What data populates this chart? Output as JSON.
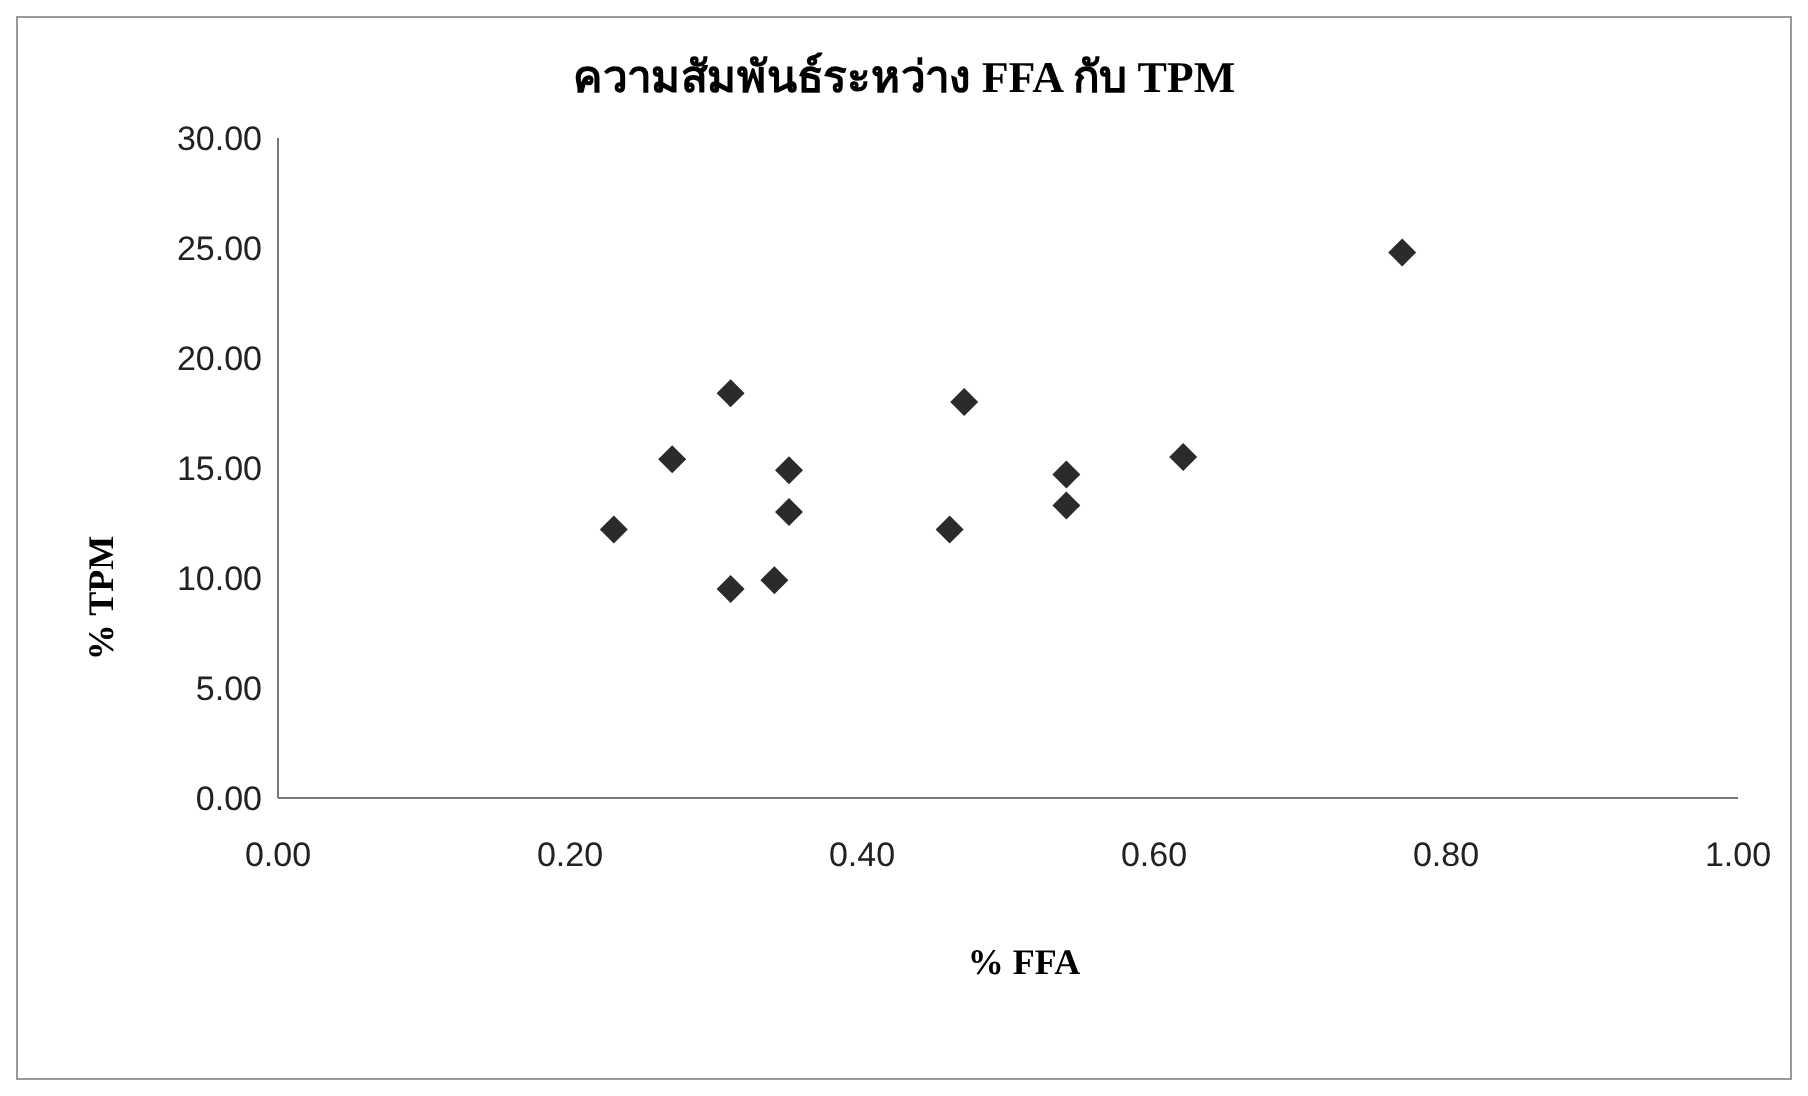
{
  "chart_data": {
    "type": "scatter",
    "title": "ความสัมพันธ์ระหว่าง FFA กับ TPM",
    "xlabel": "% FFA",
    "ylabel": "% TPM",
    "x": [
      0.23,
      0.27,
      0.31,
      0.31,
      0.34,
      0.35,
      0.35,
      0.46,
      0.47,
      0.54,
      0.54,
      0.62,
      0.77
    ],
    "series": [
      {
        "color": "#2b2b2b",
        "values": [
          12.2,
          15.4,
          18.4,
          9.5,
          9.9,
          14.9,
          13.0,
          12.2,
          18.0,
          14.7,
          13.3,
          15.5,
          24.8
        ]
      }
    ],
    "xlim": [
      0,
      1
    ],
    "xticks": [
      {
        "value": 0,
        "label": "0.00"
      },
      {
        "value": 0.2,
        "label": "0.20"
      },
      {
        "value": 0.4,
        "label": "0.40"
      },
      {
        "value": 0.6,
        "label": "0.60"
      },
      {
        "value": 0.8,
        "label": "0.80"
      },
      {
        "value": 1,
        "label": "1.00"
      }
    ],
    "ylim": [
      0,
      30
    ],
    "yticks": [
      {
        "value": 0,
        "label": "0.00"
      },
      {
        "value": 5,
        "label": "5.00"
      },
      {
        "value": 10,
        "label": "10.00"
      },
      {
        "value": 15,
        "label": "15.00"
      },
      {
        "value": 20,
        "label": "20.00"
      },
      {
        "value": 25,
        "label": "25.00"
      },
      {
        "value": 30,
        "label": "30.00"
      }
    ],
    "marker": "diamond",
    "grid": false,
    "legend": false
  }
}
